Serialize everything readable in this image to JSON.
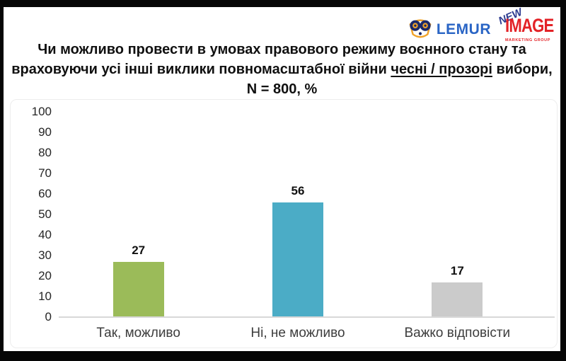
{
  "header": {
    "lemur": {
      "wordmark": "LEMUR"
    },
    "new_image": {
      "new": "NEW",
      "image": "IMAGE",
      "subtitle": "MARKETING GROUP"
    }
  },
  "title": {
    "line1": "Чи можливо провести в умовах правового режиму воєнного стану та",
    "line2_pre": "враховуючи усі інші виклики повномасштабної війни ",
    "line2_underlined": "чесні / прозорі",
    "line2_post": " вибори,",
    "line3": "N = 800, %"
  },
  "chart_data": {
    "type": "bar",
    "categories": [
      "Так, можливо",
      "Ні, не можливо",
      "Важко відповісти"
    ],
    "values": [
      27,
      56,
      17
    ],
    "bar_colors": [
      "#9bbb59",
      "#4bacc6",
      "#cbcbcb"
    ],
    "ylim": [
      0,
      100
    ],
    "yticks": [
      0,
      10,
      20,
      30,
      40,
      50,
      60,
      70,
      80,
      90,
      100
    ],
    "grid": false,
    "legend": null,
    "value_labels": true,
    "title": "",
    "xlabel": "",
    "ylabel": ""
  },
  "colors": {
    "bar_green": "#9bbb59",
    "bar_teal": "#4bacc6",
    "bar_gray": "#cbcbcb",
    "lemur_blue": "#2a65c5",
    "lemur_navy": "#1b2a6b",
    "lemur_gold": "#f0a32a",
    "new_image_red": "#e32227",
    "new_image_navy": "#2b3a8f",
    "axis_line": "#d8d8d8"
  }
}
